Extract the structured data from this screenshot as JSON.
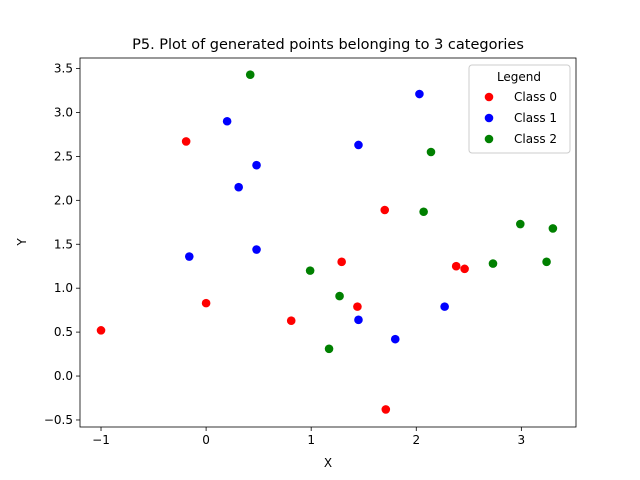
{
  "chart_data": {
    "type": "scatter",
    "title": "P5. Plot of generated points belonging to 3 categories",
    "xlabel": "X",
    "ylabel": "Y",
    "xlim": [
      -1.2,
      3.52
    ],
    "ylim": [
      -0.58,
      3.62
    ],
    "xticks": [
      -1,
      0,
      1,
      2,
      3
    ],
    "yticks": [
      -0.5,
      0.0,
      0.5,
      1.0,
      1.5,
      2.0,
      2.5,
      3.0,
      3.5
    ],
    "xtick_labels": [
      "−1",
      "0",
      "1",
      "2",
      "3"
    ],
    "ytick_labels": [
      "−0.5",
      "0.0",
      "0.5",
      "1.0",
      "1.5",
      "2.0",
      "2.5",
      "3.0",
      "3.5"
    ],
    "grid": false,
    "legend": {
      "title": "Legend",
      "placement": "top-right"
    },
    "series": [
      {
        "name": "Class 0",
        "color": "#ff0000",
        "points": [
          [
            -1.0,
            0.52
          ],
          [
            -0.19,
            2.67
          ],
          [
            0.0,
            0.83
          ],
          [
            0.81,
            0.63
          ],
          [
            1.29,
            1.3
          ],
          [
            1.44,
            0.79
          ],
          [
            1.7,
            1.89
          ],
          [
            1.71,
            -0.38
          ],
          [
            2.38,
            1.25
          ],
          [
            2.46,
            1.22
          ]
        ]
      },
      {
        "name": "Class 1",
        "color": "#0000ff",
        "points": [
          [
            -0.16,
            1.36
          ],
          [
            0.2,
            2.9
          ],
          [
            0.31,
            2.15
          ],
          [
            0.48,
            2.4
          ],
          [
            0.48,
            1.44
          ],
          [
            1.45,
            2.63
          ],
          [
            1.45,
            0.64
          ],
          [
            1.8,
            0.42
          ],
          [
            2.03,
            3.21
          ],
          [
            2.27,
            0.79
          ]
        ]
      },
      {
        "name": "Class 2",
        "color": "#008000",
        "points": [
          [
            0.42,
            3.43
          ],
          [
            0.99,
            1.2
          ],
          [
            1.17,
            0.31
          ],
          [
            1.27,
            0.91
          ],
          [
            2.07,
            1.87
          ],
          [
            2.14,
            2.55
          ],
          [
            2.73,
            1.28
          ],
          [
            2.99,
            1.73
          ],
          [
            3.24,
            1.3
          ],
          [
            3.3,
            1.68
          ]
        ]
      }
    ]
  }
}
